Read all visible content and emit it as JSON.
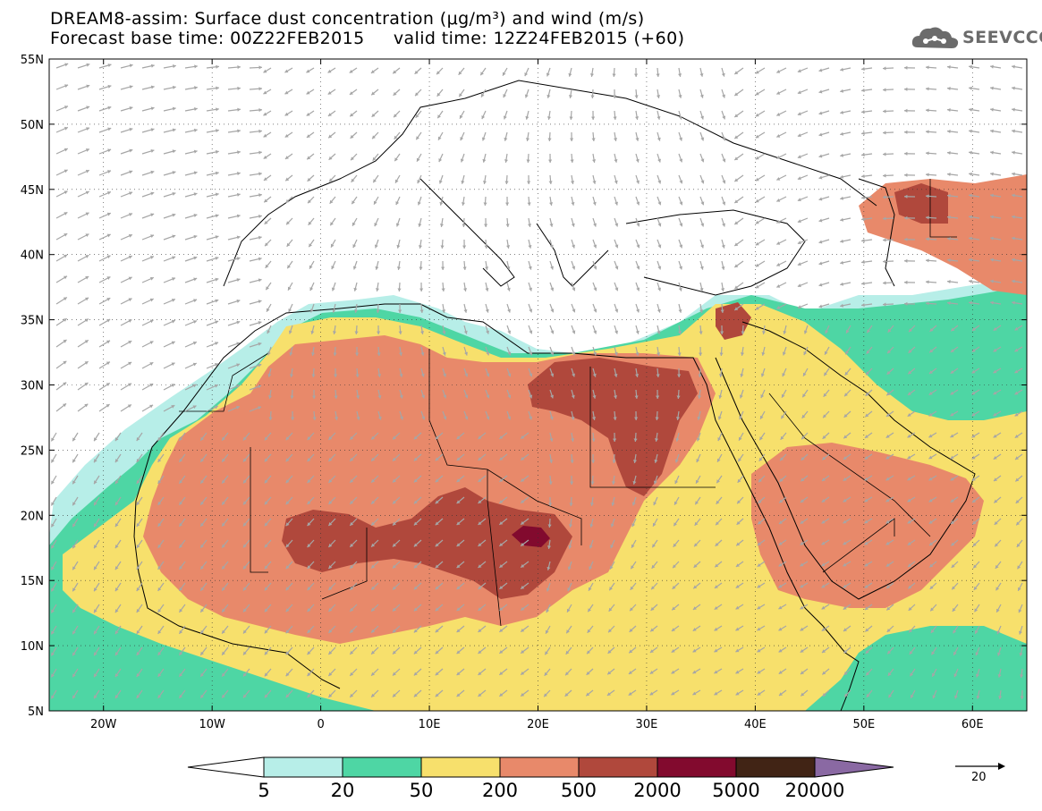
{
  "header": {
    "title": "DREAM8-assim: Surface dust concentration (μg/m³) and wind (m/s)",
    "subtitle": "Forecast base time: 00Z22FEB2015     valid time: 12Z24FEB2015 (+60)"
  },
  "logo": {
    "text": "SEEVCCC",
    "icon": "cloud-icon",
    "color": "#6b6b6b"
  },
  "map": {
    "lon_range": [
      -25,
      65
    ],
    "lat_range": [
      5,
      55
    ],
    "lat_labels": [
      "55N",
      "50N",
      "45N",
      "40N",
      "35N",
      "30N",
      "25N",
      "20N",
      "15N",
      "10N",
      "5N"
    ],
    "lon_labels": [
      "20W",
      "10W",
      "0",
      "10E",
      "20E",
      "30E",
      "40E",
      "50E",
      "60E"
    ],
    "vector_color": "#a6a6a6",
    "coast_color": "#000000"
  },
  "colorbar": {
    "thresholds": [
      "5",
      "20",
      "50",
      "200",
      "500",
      "2000",
      "5000",
      "20000"
    ],
    "colors": [
      "#ffffff",
      "#b7eee8",
      "#4ed6a4",
      "#f7e06c",
      "#e8896a",
      "#b0483c",
      "#820a2e",
      "#412415",
      "#8a69a3"
    ]
  },
  "reference_vector": {
    "label": "20"
  }
}
